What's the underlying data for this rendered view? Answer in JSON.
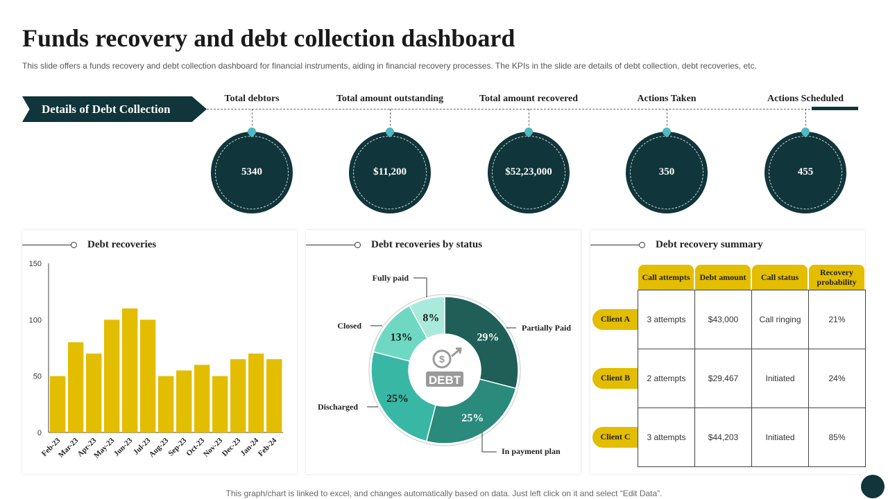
{
  "header": {
    "title": "Funds recovery and debt collection dashboard",
    "subtitle": "This slide offers a funds recovery and debt collection dashboard for financial instruments, aiding in financial recovery processes. The KPIs in the slide are details of debt collection, debt recoveries, etc."
  },
  "banner": {
    "label": "Details of Debt Collection"
  },
  "kpis": [
    {
      "label": "Total debtors",
      "value": "5340"
    },
    {
      "label": "Total amount outstanding",
      "value": "$11,200"
    },
    {
      "label": "Total amount recovered",
      "value": "$52,23,000"
    },
    {
      "label": "Actions Taken",
      "value": "350"
    },
    {
      "label": "Actions Scheduled",
      "value": "455"
    }
  ],
  "panels": {
    "recoveries": {
      "title": "Debt recoveries"
    },
    "status": {
      "title": "Debt recoveries by status",
      "center_icon_text": "DEBT",
      "center_icon_symbol": "$"
    },
    "summary": {
      "title": "Debt recovery summary"
    }
  },
  "chart_data": [
    {
      "type": "bar",
      "title": "Debt recoveries",
      "categories": [
        "Feb-23",
        "Mar-23",
        "Apr-23",
        "May-23",
        "Jun-23",
        "Jul-23",
        "Aug-23",
        "Sep-23",
        "Oct-23",
        "Nov-23",
        "Dec-23",
        "Jan-24",
        "Feb-24"
      ],
      "values": [
        50,
        80,
        70,
        100,
        110,
        100,
        50,
        55,
        60,
        50,
        65,
        70,
        65
      ],
      "ylim": [
        0,
        150
      ],
      "yticks": [
        0,
        50,
        100,
        150
      ],
      "color": "#e3bd00",
      "grid": false
    },
    {
      "type": "pie",
      "title": "Debt recoveries by status",
      "slices": [
        {
          "label": "Partially Paid",
          "value": 29,
          "display": "29%",
          "color": "#1f5f57"
        },
        {
          "label": "In payment  plan",
          "value": 25,
          "display": "25%",
          "color": "#2a8a7c"
        },
        {
          "label": "Discharged",
          "value": 25,
          "display": "25%",
          "color": "#38b8a4"
        },
        {
          "label": "Closed",
          "value": 13,
          "display": "13%",
          "color": "#6fd8c3"
        },
        {
          "label": "Fully paid",
          "value": 8,
          "display": "8%",
          "color": "#a9eadc"
        }
      ]
    },
    {
      "type": "table",
      "title": "Debt recovery summary",
      "columns": [
        "Call attempts",
        "Debt amount",
        "Call status",
        "Recovery probability"
      ],
      "rows": [
        {
          "client": "Client A",
          "cells": [
            "3 attempts",
            "$43,000",
            "Call ringing",
            "21%"
          ]
        },
        {
          "client": "Client B",
          "cells": [
            "2 attempts",
            "$29,467",
            "Initiated",
            "24%"
          ]
        },
        {
          "client": "Client C",
          "cells": [
            "3 attempts",
            "$44,203",
            "Initiated",
            "85%"
          ]
        }
      ]
    }
  ],
  "footer": "This graph/chart is linked to excel,  and changes automatically based on data. Just left click on it and select “Edit Data”."
}
